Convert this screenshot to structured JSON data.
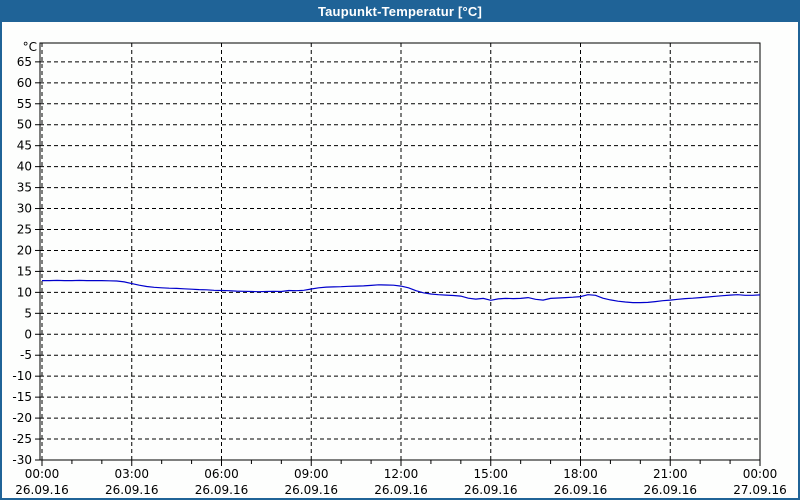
{
  "window": {
    "title": "Taupunkt-Temperatur [°C]",
    "title_bar_color": "#1F6397",
    "border_color": "#1F6397",
    "background_color": "#FDFEFD"
  },
  "chart_data": {
    "type": "line",
    "title": "Taupunkt-Temperatur [°C]",
    "y_unit_label": "°C",
    "grid": "dashed",
    "legend": "none",
    "ylim": [
      -30,
      69.5
    ],
    "yticks": [
      65,
      60,
      55,
      50,
      45,
      40,
      35,
      30,
      25,
      20,
      15,
      10,
      5,
      0,
      -5,
      -10,
      -15,
      -20,
      -25,
      -30
    ],
    "xlim_hours": [
      0,
      24
    ],
    "x_minor_tick_hours": 1,
    "xticks": [
      {
        "hour": 0,
        "time": "00:00",
        "date": "26.09.16"
      },
      {
        "hour": 3,
        "time": "03:00",
        "date": "26.09.16"
      },
      {
        "hour": 6,
        "time": "06:00",
        "date": "26.09.16"
      },
      {
        "hour": 9,
        "time": "09:00",
        "date": "26.09.16"
      },
      {
        "hour": 12,
        "time": "12:00",
        "date": "26.09.16"
      },
      {
        "hour": 15,
        "time": "15:00",
        "date": "26.09.16"
      },
      {
        "hour": 18,
        "time": "18:00",
        "date": "26.09.16"
      },
      {
        "hour": 21,
        "time": "21:00",
        "date": "26.09.16"
      },
      {
        "hour": 24,
        "time": "00:00",
        "date": "27.09.16"
      }
    ],
    "series": [
      {
        "name": "Taupunkt-Temperatur",
        "color": "#0000CC",
        "x_start_hour": 0,
        "x_step_hours": 0.25,
        "values": [
          12.8,
          12.8,
          12.85,
          12.8,
          12.8,
          12.85,
          12.8,
          12.8,
          12.8,
          12.75,
          12.7,
          12.5,
          12.1,
          11.7,
          11.4,
          11.2,
          11.1,
          11.0,
          10.95,
          10.85,
          10.75,
          10.65,
          10.6,
          10.5,
          10.45,
          10.4,
          10.3,
          10.25,
          10.2,
          10.15,
          10.2,
          10.25,
          10.2,
          10.45,
          10.4,
          10.5,
          10.8,
          11.1,
          11.25,
          11.3,
          11.35,
          11.45,
          11.5,
          11.55,
          11.65,
          11.8,
          11.75,
          11.7,
          11.5,
          11.1,
          10.4,
          9.9,
          9.6,
          9.45,
          9.35,
          9.25,
          9.1,
          8.6,
          8.4,
          8.55,
          8.1,
          8.45,
          8.55,
          8.5,
          8.55,
          8.75,
          8.35,
          8.15,
          8.55,
          8.65,
          8.75,
          8.85,
          9.0,
          9.45,
          9.3,
          8.6,
          8.2,
          7.9,
          7.7,
          7.55,
          7.55,
          7.6,
          7.8,
          8.0,
          8.15,
          8.35,
          8.5,
          8.6,
          8.75,
          8.9,
          9.05,
          9.2,
          9.35,
          9.45,
          9.3,
          9.3,
          9.4
        ]
      }
    ]
  }
}
